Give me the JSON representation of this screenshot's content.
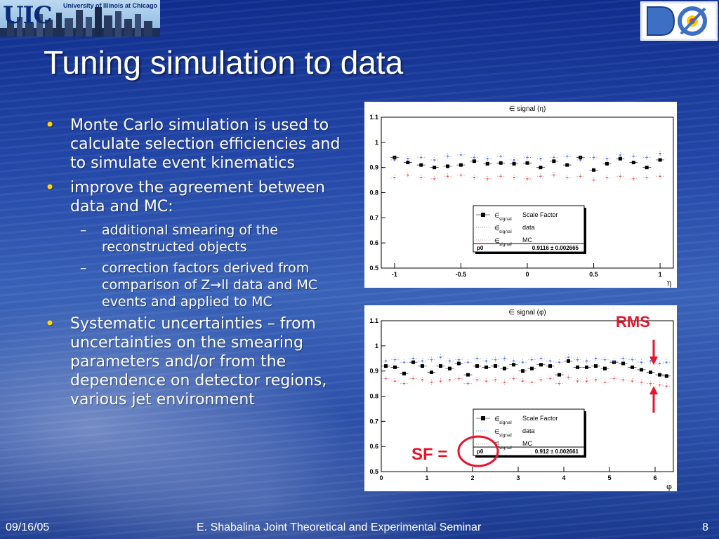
{
  "header": {
    "uic_logo_text": "UIC",
    "uic_university_name": "University of Illinois at Chicago",
    "d0_logo_text": "DØ"
  },
  "slide": {
    "title": "Tuning simulation to data",
    "bullets": [
      {
        "level": 1,
        "text": "Monte Carlo simulation is used to calculate selection efficiencies and to simulate event kinematics"
      },
      {
        "level": 1,
        "text": "improve the agreement between data and MC:"
      },
      {
        "level": 2,
        "text": "additional smearing of the reconstructed objects"
      },
      {
        "level": 2,
        "text": "correction factors derived from comparison of Z→ll data and MC events and applied to MC"
      },
      {
        "level": 1,
        "text": "Systematic uncertainties – from uncertainties on the smearing parameters and/or from the dependence on detector regions, various jet environment"
      }
    ]
  },
  "annotations": {
    "rms_label": "RMS",
    "sf_label": "SF ="
  },
  "footer": {
    "date": "09/16/05",
    "center": "E. Shabalina Joint Theoretical and Experimental Seminar",
    "page": "8"
  },
  "chart_data": [
    {
      "type": "scatter",
      "title": "∈ signal (η)",
      "xlabel": "η",
      "ylabel": "",
      "xlim": [
        -1.1,
        1.1
      ],
      "ylim": [
        0.5,
        1.1
      ],
      "xticks": [
        "-1",
        "-0.5",
        "0",
        "0.5",
        "1"
      ],
      "yticks": [
        "0.5",
        "0.6",
        "0.7",
        "0.8",
        "0.9",
        "1",
        "1.1"
      ],
      "legend": {
        "placement": "center-right",
        "entries": [
          {
            "name": "∈ signal Scale Factor",
            "marker": "square",
            "color": "#000000"
          },
          {
            "name": "∈ signal data",
            "marker": "dot",
            "color": "#4a6cf0"
          },
          {
            "name": "∈ signal MC",
            "marker": "dot",
            "color": "#e05a5a"
          }
        ],
        "fit_param": "p0",
        "fit_value": "0.9116 ± 0.002665"
      },
      "series": [
        {
          "name": "Scale Factor",
          "x": [
            -1.0,
            -0.9,
            -0.8,
            -0.7,
            -0.6,
            -0.5,
            -0.4,
            -0.3,
            -0.2,
            -0.1,
            0.0,
            0.1,
            0.2,
            0.3,
            0.4,
            0.5,
            0.6,
            0.7,
            0.8,
            0.9,
            1.0
          ],
          "y": [
            0.94,
            0.92,
            0.91,
            0.9,
            0.905,
            0.91,
            0.925,
            0.915,
            0.918,
            0.915,
            0.918,
            0.9,
            0.925,
            0.91,
            0.94,
            0.89,
            0.915,
            0.935,
            0.92,
            0.9,
            0.93
          ]
        },
        {
          "name": "data",
          "x": [
            -1.0,
            -0.9,
            -0.8,
            -0.7,
            -0.6,
            -0.5,
            -0.4,
            -0.3,
            -0.2,
            -0.1,
            0.0,
            0.1,
            0.2,
            0.3,
            0.4,
            0.5,
            0.6,
            0.7,
            0.8,
            0.9,
            1.0
          ],
          "y": [
            0.93,
            0.935,
            0.94,
            0.93,
            0.945,
            0.95,
            0.94,
            0.935,
            0.945,
            0.93,
            0.94,
            0.935,
            0.94,
            0.945,
            0.93,
            0.94,
            0.935,
            0.95,
            0.945,
            0.94,
            0.955
          ]
        },
        {
          "name": "MC",
          "x": [
            -1.0,
            -0.9,
            -0.8,
            -0.7,
            -0.6,
            -0.5,
            -0.4,
            -0.3,
            -0.2,
            -0.1,
            0.0,
            0.1,
            0.2,
            0.3,
            0.4,
            0.5,
            0.6,
            0.7,
            0.8,
            0.9,
            1.0
          ],
          "y": [
            0.86,
            0.87,
            0.86,
            0.855,
            0.865,
            0.87,
            0.86,
            0.855,
            0.865,
            0.86,
            0.855,
            0.865,
            0.87,
            0.86,
            0.865,
            0.85,
            0.86,
            0.865,
            0.855,
            0.86,
            0.865
          ]
        }
      ]
    },
    {
      "type": "scatter",
      "title": "∈ signal (φ)",
      "xlabel": "φ",
      "ylabel": "",
      "xlim": [
        0,
        6.4
      ],
      "ylim": [
        0.5,
        1.1
      ],
      "xticks": [
        "0",
        "1",
        "2",
        "3",
        "4",
        "5",
        "6"
      ],
      "yticks": [
        "0.5",
        "0.6",
        "0.7",
        "0.8",
        "0.9",
        "1",
        "1.1"
      ],
      "legend": {
        "placement": "center-right",
        "entries": [
          {
            "name": "∈ signal Scale Factor",
            "marker": "square",
            "color": "#000000"
          },
          {
            "name": "∈ signal data",
            "marker": "dot",
            "color": "#4a6cf0"
          },
          {
            "name": "∈ signal MC",
            "marker": "dot",
            "color": "#e05a5a"
          }
        ],
        "fit_param": "p0",
        "fit_value": "0.912 ± 0.002661"
      },
      "series": [
        {
          "name": "Scale Factor",
          "x": [
            0.1,
            0.3,
            0.5,
            0.7,
            0.9,
            1.1,
            1.3,
            1.5,
            1.7,
            1.9,
            2.1,
            2.3,
            2.5,
            2.7,
            2.9,
            3.1,
            3.3,
            3.5,
            3.7,
            3.9,
            4.1,
            4.3,
            4.5,
            4.7,
            4.9,
            5.1,
            5.3,
            5.5,
            5.7,
            5.9,
            6.1,
            6.25
          ],
          "y": [
            0.92,
            0.915,
            0.89,
            0.935,
            0.92,
            0.895,
            0.92,
            0.91,
            0.93,
            0.885,
            0.92,
            0.915,
            0.92,
            0.91,
            0.925,
            0.9,
            0.91,
            0.925,
            0.92,
            0.885,
            0.94,
            0.915,
            0.915,
            0.92,
            0.91,
            0.935,
            0.93,
            0.915,
            0.905,
            0.895,
            0.885,
            0.88
          ]
        },
        {
          "name": "data",
          "x": [
            0.1,
            0.3,
            0.5,
            0.7,
            0.9,
            1.1,
            1.3,
            1.5,
            1.7,
            1.9,
            2.1,
            2.3,
            2.5,
            2.7,
            2.9,
            3.1,
            3.3,
            3.5,
            3.7,
            3.9,
            4.1,
            4.3,
            4.5,
            4.7,
            4.9,
            5.1,
            5.3,
            5.5,
            5.7,
            5.9,
            6.1,
            6.25
          ],
          "y": [
            0.94,
            0.945,
            0.935,
            0.95,
            0.94,
            0.945,
            0.955,
            0.94,
            0.945,
            0.935,
            0.95,
            0.94,
            0.945,
            0.95,
            0.94,
            0.935,
            0.945,
            0.95,
            0.94,
            0.935,
            0.955,
            0.945,
            0.94,
            0.95,
            0.945,
            0.94,
            0.95,
            0.945,
            0.935,
            0.94,
            0.93,
            0.935
          ]
        },
        {
          "name": "MC",
          "x": [
            0.1,
            0.3,
            0.5,
            0.7,
            0.9,
            1.1,
            1.3,
            1.5,
            1.7,
            1.9,
            2.1,
            2.3,
            2.5,
            2.7,
            2.9,
            3.1,
            3.3,
            3.5,
            3.7,
            3.9,
            4.1,
            4.3,
            4.5,
            4.7,
            4.9,
            5.1,
            5.3,
            5.5,
            5.7,
            5.9,
            6.1,
            6.25
          ],
          "y": [
            0.87,
            0.86,
            0.85,
            0.87,
            0.865,
            0.855,
            0.86,
            0.865,
            0.87,
            0.85,
            0.865,
            0.86,
            0.865,
            0.855,
            0.87,
            0.86,
            0.855,
            0.865,
            0.87,
            0.85,
            0.875,
            0.86,
            0.86,
            0.865,
            0.855,
            0.87,
            0.865,
            0.86,
            0.855,
            0.85,
            0.845,
            0.84
          ]
        }
      ]
    }
  ]
}
